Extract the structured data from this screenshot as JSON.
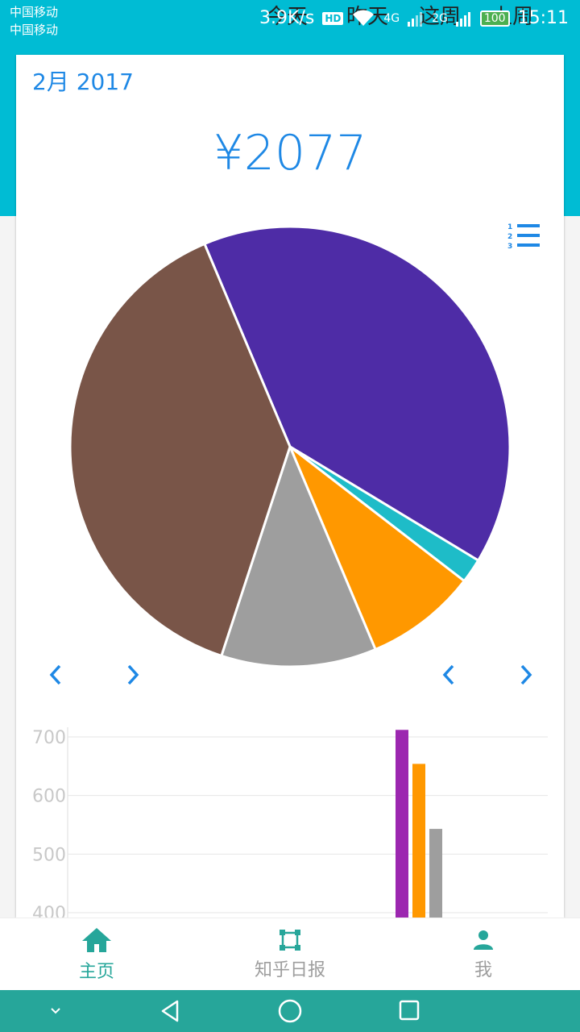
{
  "status": {
    "carrier1": "中国移动",
    "carrier2": "中国移动",
    "speed": "3.9K/s",
    "hd": "HD",
    "net1": "4G",
    "net2": "2G",
    "battery": "100",
    "time": "15:11"
  },
  "overlay_tabs": [
    "今天",
    "昨天",
    "这周",
    "上周"
  ],
  "header": {
    "month": "2月 2017",
    "total": "¥2077"
  },
  "colors": {
    "accent": "#1e88e5",
    "teal": "#00bcd4",
    "nav_active": "#26a69a",
    "slices": [
      "#4e2ca6",
      "#1ebcc8",
      "#ff9800",
      "#9e9e9e",
      "#795548"
    ]
  },
  "chart_data": [
    {
      "type": "pie",
      "values": [
        0.4,
        0.018,
        0.082,
        0.114,
        0.386
      ],
      "colors": [
        "#4e2ca6",
        "#1ebcc8",
        "#ff9800",
        "#9e9e9e",
        "#795548"
      ]
    },
    {
      "type": "bar",
      "y_ticks": [
        "700",
        "600",
        "500",
        "400"
      ],
      "ylim": [
        400,
        700
      ],
      "grid": true,
      "values": [
        712,
        654,
        543
      ],
      "colors": [
        "#9c27b0",
        "#ff9800",
        "#9e9e9e"
      ]
    }
  ],
  "nav": [
    {
      "label": "主页",
      "icon": "home-icon",
      "active": true
    },
    {
      "label": "知乎日报",
      "icon": "frame-icon",
      "active": false
    },
    {
      "label": "我",
      "icon": "person-icon",
      "active": false
    }
  ]
}
